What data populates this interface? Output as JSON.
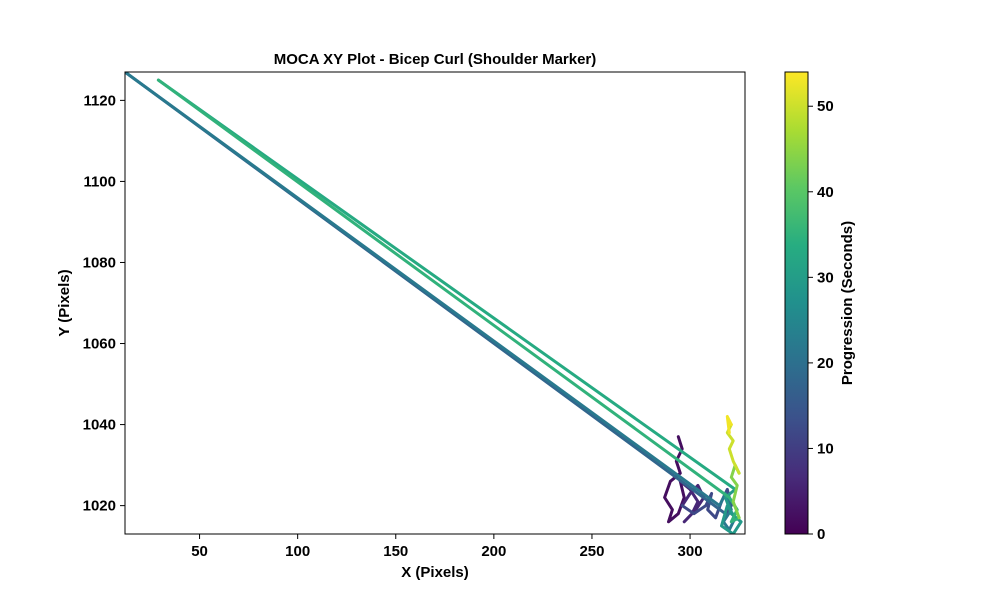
{
  "chart_data": {
    "type": "line",
    "title": "MOCA XY Plot - Bicep Curl (Shoulder Marker)",
    "xlabel": "X (Pixels)",
    "ylabel": "Y (Pixels)",
    "xlim": [
      12,
      328
    ],
    "ylim": [
      1013,
      1127
    ],
    "xticks": [
      50,
      100,
      150,
      200,
      250,
      300
    ],
    "yticks": [
      1020,
      1040,
      1060,
      1080,
      1100,
      1120
    ],
    "colorbar": {
      "label": "Progression (Seconds)",
      "colormap": "viridis",
      "range": [
        0,
        54
      ],
      "ticks": [
        0,
        10,
        20,
        30,
        40,
        50
      ]
    },
    "segments": [
      {
        "t": 2,
        "points": [
          [
            294,
            1037
          ],
          [
            296,
            1034
          ],
          [
            293,
            1031
          ],
          [
            295,
            1028
          ],
          [
            290,
            1026
          ],
          [
            287,
            1022
          ],
          [
            291,
            1019
          ],
          [
            289,
            1016
          ],
          [
            294,
            1018
          ],
          [
            297,
            1022
          ],
          [
            295,
            1026
          ]
        ]
      },
      {
        "t": 6,
        "points": [
          [
            295,
            1026
          ],
          [
            300,
            1024
          ],
          [
            304,
            1021
          ],
          [
            301,
            1018
          ],
          [
            297,
            1016
          ],
          [
            303,
            1019
          ],
          [
            307,
            1022
          ],
          [
            304,
            1025
          ],
          [
            300,
            1023
          ],
          [
            296,
            1020
          ]
        ]
      },
      {
        "t": 12,
        "points": [
          [
            296,
            1020
          ],
          [
            302,
            1018
          ],
          [
            308,
            1020
          ],
          [
            311,
            1023
          ],
          [
            309,
            1019
          ],
          [
            313,
            1017
          ],
          [
            316,
            1021
          ],
          [
            319,
            1024
          ],
          [
            321,
            1020
          ],
          [
            318,
            1018
          ]
        ]
      },
      {
        "t": 18,
        "points": [
          [
            318,
            1018
          ],
          [
            12,
            1127
          ]
        ]
      },
      {
        "t": 22,
        "points": [
          [
            12,
            1127
          ],
          [
            315,
            1020
          ],
          [
            318,
            1023
          ],
          [
            321,
            1019
          ],
          [
            317,
            1016
          ],
          [
            320,
            1014
          ],
          [
            323,
            1017
          ]
        ]
      },
      {
        "t": 29,
        "points": [
          [
            323,
            1017
          ],
          [
            319,
            1020
          ],
          [
            316,
            1015
          ],
          [
            322,
            1013
          ],
          [
            326,
            1016
          ],
          [
            321,
            1018
          ],
          [
            318,
            1022
          ],
          [
            323,
            1024
          ]
        ]
      },
      {
        "t": 33,
        "points": [
          [
            323,
            1024
          ],
          [
            29,
            1125
          ]
        ]
      },
      {
        "t": 35,
        "points": [
          [
            29,
            1125
          ],
          [
            320,
            1022
          ],
          [
            324,
            1019
          ],
          [
            321,
            1016
          ],
          [
            325,
            1017
          ]
        ]
      },
      {
        "t": 44,
        "points": [
          [
            325,
            1017
          ],
          [
            322,
            1021
          ],
          [
            324,
            1025
          ],
          [
            321,
            1027
          ],
          [
            323,
            1030
          ],
          [
            325,
            1028
          ]
        ]
      },
      {
        "t": 50,
        "points": [
          [
            325,
            1028
          ],
          [
            322,
            1031
          ],
          [
            320,
            1034
          ],
          [
            322,
            1036
          ],
          [
            319,
            1038
          ],
          [
            321,
            1040
          ]
        ]
      },
      {
        "t": 53,
        "points": [
          [
            321,
            1040
          ],
          [
            319,
            1042
          ],
          [
            320,
            1038
          ]
        ]
      }
    ]
  }
}
